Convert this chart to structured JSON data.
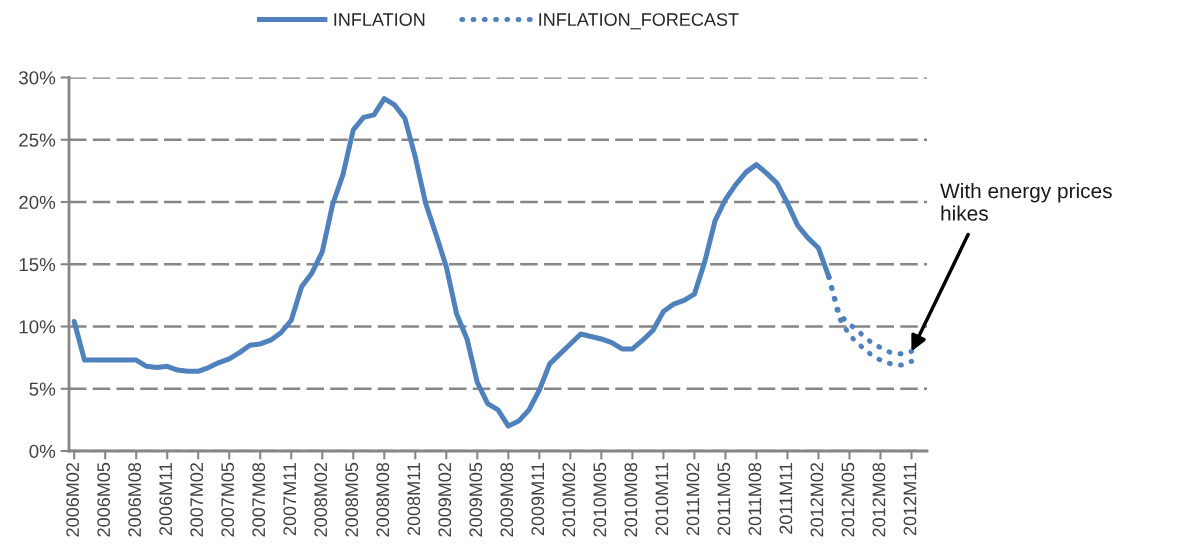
{
  "chart_data": {
    "type": "line",
    "categories": [
      "2006M02",
      null,
      null,
      "2006M05",
      null,
      null,
      "2006M08",
      null,
      null,
      "2006M11",
      null,
      null,
      "2007M02",
      null,
      null,
      "2007M05",
      null,
      null,
      "2007M08",
      null,
      null,
      "2007M11",
      null,
      null,
      "2008M02",
      null,
      null,
      "2008M05",
      null,
      null,
      "2008M08",
      null,
      null,
      "2008M11",
      null,
      null,
      "2009M02",
      null,
      null,
      "2009M05",
      null,
      null,
      "2009M08",
      null,
      null,
      "2009M11",
      null,
      null,
      "2010M02",
      null,
      null,
      "2010M05",
      null,
      null,
      "2010M08",
      null,
      null,
      "2010M11",
      null,
      null,
      "2011M02",
      null,
      null,
      "2011M05",
      null,
      null,
      "2011M08",
      null,
      null,
      "2011M11",
      null,
      null,
      "2012M02",
      null,
      null,
      "2012M05",
      null,
      null,
      "2012M08",
      null,
      null,
      "2012M11",
      null
    ],
    "series": [
      {
        "name": "INFLATION",
        "color": "#4f81bd",
        "line_style": "solid",
        "values": [
          10.4,
          7.3,
          7.3,
          7.3,
          7.3,
          7.3,
          7.3,
          6.8,
          6.7,
          6.8,
          6.5,
          6.4,
          6.4,
          6.7,
          7.1,
          7.4,
          7.9,
          8.5,
          8.6,
          8.9,
          9.5,
          10.5,
          13.2,
          14.3,
          16.0,
          19.8,
          22.2,
          25.8,
          26.8,
          27.0,
          28.3,
          27.8,
          26.7,
          23.6,
          19.9,
          17.4,
          14.8,
          11.0,
          9.0,
          5.5,
          3.8,
          3.3,
          2.0,
          2.4,
          3.3,
          4.9,
          7.0,
          7.8,
          8.6,
          9.4,
          9.2,
          9.0,
          8.7,
          8.2,
          8.2,
          8.9,
          9.7,
          11.2,
          11.8,
          12.1,
          12.6,
          15.2,
          18.5,
          20.2,
          21.4,
          22.4,
          23.0,
          22.3,
          21.5,
          19.9,
          18.1,
          17.1,
          16.3,
          14.0,
          null,
          null,
          null,
          null,
          null,
          null,
          null,
          null,
          null
        ]
      },
      {
        "name": "INFLATION_FORECAST",
        "color": "#4f81bd",
        "line_style": "dotted",
        "values": [
          null,
          null,
          null,
          null,
          null,
          null,
          null,
          null,
          null,
          null,
          null,
          null,
          null,
          null,
          null,
          null,
          null,
          null,
          null,
          null,
          null,
          null,
          null,
          null,
          null,
          null,
          null,
          null,
          null,
          null,
          null,
          null,
          null,
          null,
          null,
          null,
          null,
          null,
          null,
          null,
          null,
          null,
          null,
          null,
          null,
          null,
          null,
          null,
          null,
          null,
          null,
          null,
          null,
          null,
          null,
          null,
          null,
          null,
          null,
          null,
          null,
          null,
          null,
          null,
          null,
          null,
          null,
          null,
          null,
          null,
          null,
          null,
          null,
          14.0,
          10.7,
          9.3,
          8.5,
          7.8,
          7.3,
          7.0,
          6.9,
          7.2,
          null
        ]
      },
      {
        "color": "#4f81bd",
        "line_style": "dotted",
        "values": [
          null,
          null,
          null,
          null,
          null,
          null,
          null,
          null,
          null,
          null,
          null,
          null,
          null,
          null,
          null,
          null,
          null,
          null,
          null,
          null,
          null,
          null,
          null,
          null,
          null,
          null,
          null,
          null,
          null,
          null,
          null,
          null,
          null,
          null,
          null,
          null,
          null,
          null,
          null,
          null,
          null,
          null,
          null,
          null,
          null,
          null,
          null,
          null,
          null,
          null,
          null,
          null,
          null,
          null,
          null,
          null,
          null,
          null,
          null,
          null,
          null,
          null,
          null,
          null,
          null,
          null,
          null,
          null,
          null,
          null,
          null,
          null,
          null,
          14.0,
          11.0,
          10.2,
          9.5,
          8.8,
          8.3,
          7.9,
          7.8,
          8.0,
          null
        ]
      }
    ],
    "ylim": [
      0,
      30
    ],
    "yticks": [
      {
        "value": 0,
        "label": "0%"
      },
      {
        "value": 5,
        "label": "5%"
      },
      {
        "value": 10,
        "label": "10%"
      },
      {
        "value": 15,
        "label": "15%"
      },
      {
        "value": 20,
        "label": "20%"
      },
      {
        "value": 25,
        "label": "25%"
      },
      {
        "value": 30,
        "label": "30%"
      }
    ],
    "grid": "y",
    "legend": "top",
    "annotations": [
      {
        "text": "With energy prices hikes",
        "x": "2012M11",
        "y": 8.0
      }
    ]
  }
}
